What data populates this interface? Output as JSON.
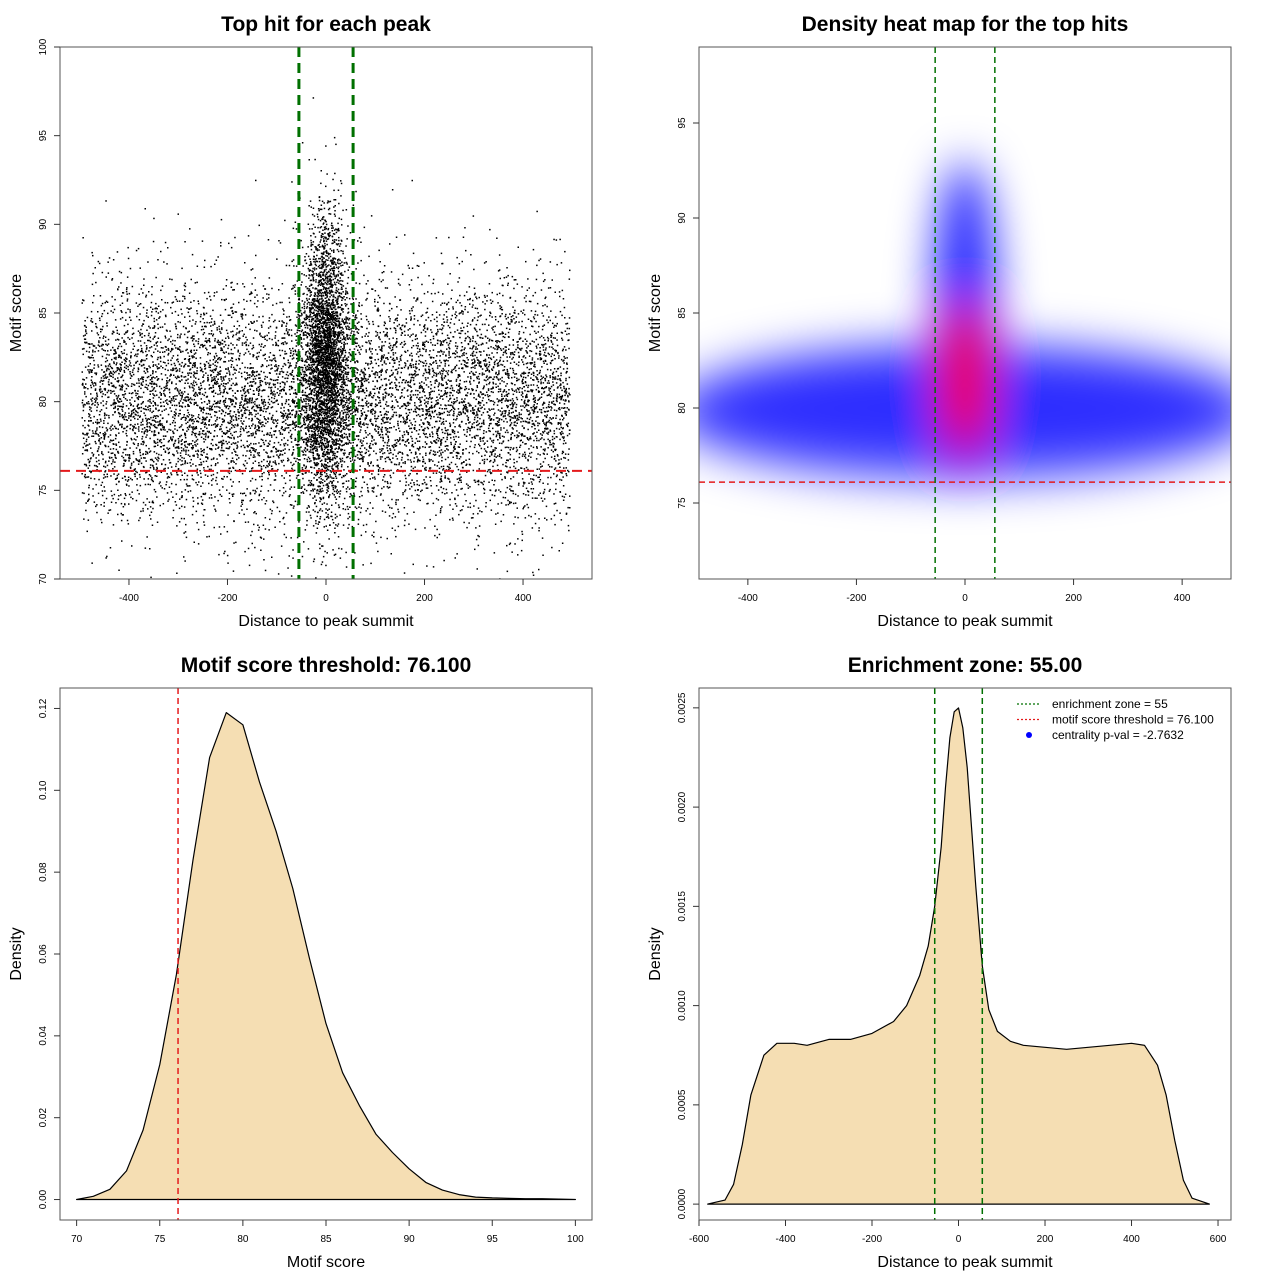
{
  "panels": [
    {
      "type": "scatter",
      "title": "Top hit for each peak",
      "xlabel": "Distance to peak summit",
      "ylabel": "Motif score",
      "xlim": [
        -540,
        540
      ],
      "ylim": [
        70,
        100
      ],
      "xticks": [
        -400,
        -200,
        0,
        200,
        400
      ],
      "yticks": [
        70,
        75,
        80,
        85,
        90,
        95,
        100
      ],
      "hlines": [
        {
          "y": 76.1,
          "color": "#e41a1c",
          "dash": "10,6",
          "width": 2
        }
      ],
      "vlines": [
        {
          "x": -55,
          "color": "#007000",
          "dash": "10,6",
          "width": 3
        },
        {
          "x": 55,
          "color": "#007000",
          "dash": "10,6",
          "width": 3
        }
      ],
      "point_color": "#000000",
      "distribution": {
        "x_range": [
          -495,
          495
        ],
        "background_mean": 80.0,
        "background_sd": 3.3,
        "center_sd_x": 22,
        "center_mean": 82.5,
        "center_sd": 3.8
      }
    },
    {
      "type": "heatmap",
      "title": "Density heat map for the top hits",
      "xlabel": "Distance to peak summit",
      "ylabel": "Motif score",
      "xlim": [
        -490,
        490
      ],
      "ylim": [
        71,
        99
      ],
      "xticks": [
        -400,
        -200,
        0,
        200,
        400
      ],
      "yticks": [
        75,
        80,
        85,
        90,
        95
      ],
      "hlines": [
        {
          "y": 76.1,
          "color": "#e41a1c",
          "dash": "6,4",
          "width": 1.5
        }
      ],
      "vlines": [
        {
          "x": -55,
          "color": "#007000",
          "dash": "6,4",
          "width": 1.5
        },
        {
          "x": 55,
          "color": "#007000",
          "dash": "6,4",
          "width": 1.5
        }
      ],
      "colors": [
        "#ffffff",
        "#0000ff",
        "#ff0000"
      ]
    },
    {
      "type": "area",
      "title": "Motif score threshold: 76.100",
      "xlabel": "Motif score",
      "ylabel": "Density",
      "xlim": [
        69,
        101
      ],
      "ylim": [
        -0.005,
        0.125
      ],
      "xticks": [
        70,
        75,
        80,
        85,
        90,
        95,
        100
      ],
      "yticks": [
        0.0,
        0.02,
        0.04,
        0.06,
        0.08,
        0.1,
        0.12
      ],
      "ytick_decimals": 2,
      "fill": "#f5deb3",
      "x": [
        70,
        71,
        72,
        73,
        74,
        75,
        76,
        77,
        78,
        79,
        80,
        81,
        82,
        83,
        84,
        85,
        86,
        87,
        88,
        89,
        90,
        91,
        92,
        93,
        94,
        95,
        96,
        97,
        98,
        99,
        100
      ],
      "y": [
        0.0,
        0.0008,
        0.0025,
        0.007,
        0.017,
        0.033,
        0.055,
        0.083,
        0.108,
        0.119,
        0.116,
        0.102,
        0.09,
        0.076,
        0.059,
        0.043,
        0.031,
        0.023,
        0.016,
        0.0115,
        0.0075,
        0.0042,
        0.0023,
        0.0012,
        0.0006,
        0.0004,
        0.0003,
        0.0002,
        0.0002,
        0.0001,
        0.0
      ],
      "hlines": [],
      "vlines": [
        {
          "x": 76.1,
          "color": "#e41a1c",
          "dash": "6,4",
          "width": 1.5
        }
      ]
    },
    {
      "type": "area",
      "title": "Enrichment zone: 55.00",
      "xlabel": "Distance to peak summit",
      "ylabel": "Density",
      "xlim": [
        -600,
        630
      ],
      "ylim": [
        -8e-05,
        0.0026
      ],
      "xticks": [
        -600,
        -400,
        -200,
        0,
        200,
        400,
        600
      ],
      "yticks": [
        0.0,
        0.0005,
        0.001,
        0.0015,
        0.002,
        0.0025
      ],
      "ytick_decimals": 4,
      "fill": "#f5deb3",
      "x": [
        -580,
        -540,
        -520,
        -500,
        -480,
        -450,
        -420,
        -380,
        -350,
        -300,
        -250,
        -200,
        -150,
        -120,
        -90,
        -70,
        -55,
        -40,
        -30,
        -20,
        -10,
        0,
        10,
        20,
        30,
        40,
        55,
        70,
        90,
        120,
        150,
        200,
        250,
        300,
        350,
        400,
        430,
        460,
        480,
        500,
        520,
        540,
        580
      ],
      "y": [
        0.0,
        2e-05,
        0.0001,
        0.0003,
        0.00055,
        0.00075,
        0.00081,
        0.00081,
        0.0008,
        0.00083,
        0.00083,
        0.00086,
        0.00092,
        0.001,
        0.00115,
        0.0013,
        0.0015,
        0.0018,
        0.0021,
        0.00235,
        0.00248,
        0.0025,
        0.0024,
        0.0022,
        0.0019,
        0.0016,
        0.0012,
        0.00098,
        0.00087,
        0.00082,
        0.0008,
        0.00079,
        0.00078,
        0.00079,
        0.0008,
        0.00081,
        0.0008,
        0.0007,
        0.00055,
        0.00032,
        0.00012,
        3e-05,
        0.0
      ],
      "hlines": [],
      "vlines": [
        {
          "x": -55,
          "color": "#007000",
          "dash": "6,4",
          "width": 1.5
        },
        {
          "x": 55,
          "color": "#007000",
          "dash": "6,4",
          "width": 1.5
        }
      ],
      "legend": {
        "position": "top-right",
        "items": [
          {
            "label": "enrichment zone = 55",
            "color": "#007000",
            "kind": "dotted-line"
          },
          {
            "label": "motif score threshold = 76.100",
            "color": "#e41a1c",
            "kind": "dotted-line"
          },
          {
            "label": "centrality p-val = -2.7632",
            "color": "#0000ff",
            "kind": "point"
          }
        ]
      }
    }
  ]
}
